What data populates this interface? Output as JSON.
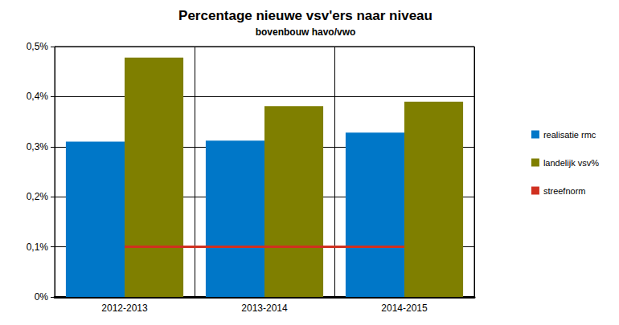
{
  "chart_data": {
    "type": "bar",
    "title": "Percentage nieuwe vsv'ers naar niveau",
    "subtitle": "bovenbouw havo/vwo",
    "categories": [
      "2012-2013",
      "2013-2014",
      "2014-2015"
    ],
    "series": [
      {
        "name": "realisatie rmc",
        "type": "bar",
        "color": "#0077c8",
        "values": [
          0.31,
          0.312,
          0.328
        ]
      },
      {
        "name": "landelijk vsv%",
        "type": "bar",
        "color": "#7f7f00",
        "values": [
          0.478,
          0.381,
          0.39
        ]
      },
      {
        "name": "streefnorm",
        "type": "line",
        "color": "#d03020",
        "values": [
          0.1,
          0.1,
          0.1
        ]
      }
    ],
    "ylim": [
      0,
      0.5
    ],
    "yticks": [
      {
        "value": 0,
        "label": "0%"
      },
      {
        "value": 0.1,
        "label": "0,1%"
      },
      {
        "value": 0.2,
        "label": "0,2%"
      },
      {
        "value": 0.3,
        "label": "0,3%"
      },
      {
        "value": 0.4,
        "label": "0,4%"
      },
      {
        "value": 0.5,
        "label": "0,5%"
      }
    ],
    "grid": true,
    "legend": "right"
  }
}
